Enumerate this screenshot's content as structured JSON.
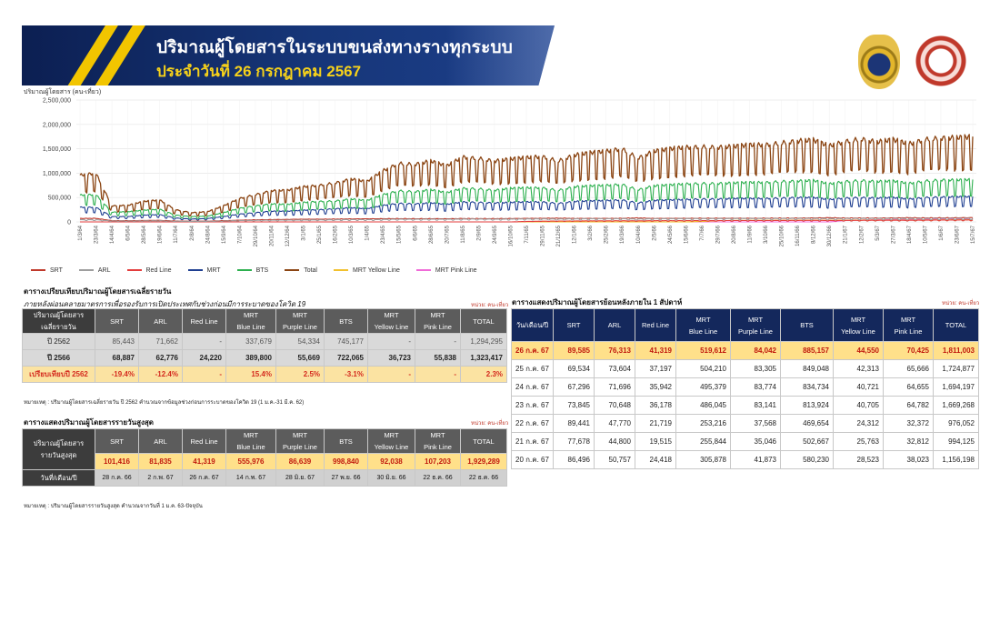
{
  "header": {
    "title": "ปริมาณผู้โดยสารในระบบขนส่งทางรางทุกระบบ",
    "subtitle": "ประจำวันที่ 26 กรกฎาคม 2567"
  },
  "colors": {
    "SRT": "#c0392b",
    "ARL": "#9e9e9e",
    "Red Line": "#e33d3d",
    "MRT": "#1f3f91",
    "BTS": "#2db04f",
    "Total": "#8b4513",
    "MRT Yellow Line": "#f2c12e",
    "MRT Pink Line": "#f06bd8",
    "highlight_row": "#ffe08a",
    "compare_row": "#fbe3a2"
  },
  "chart_data": {
    "type": "line",
    "ylabel": "ปริมาณผู้โดยสาร (คน-เที่ยว)",
    "ylim": [
      0,
      2500000
    ],
    "yticks": [
      "0",
      "500,000",
      "1,000,000",
      "1,500,000",
      "2,000,000",
      "2,500,000"
    ],
    "grid": true,
    "legend_position": "bottom",
    "x_tick_labels": [
      "1/3/64",
      "23/3/64",
      "14/4/64",
      "6/5/64",
      "28/5/64",
      "19/6/64",
      "11/7/64",
      "2/8/64",
      "24/8/64",
      "15/9/64",
      "7/10/64",
      "29/10/64",
      "20/11/64",
      "12/12/64",
      "3/1/65",
      "25/1/65",
      "16/2/65",
      "10/3/65",
      "1/4/65",
      "23/4/65",
      "15/5/65",
      "6/6/65",
      "28/6/65",
      "20/7/65",
      "11/8/65",
      "2/9/65",
      "24/9/65",
      "16/10/65",
      "7/11/65",
      "29/11/65",
      "21/12/65",
      "12/1/66",
      "3/2/66",
      "25/2/66",
      "19/3/66",
      "10/4/66",
      "2/5/66",
      "24/5/66",
      "15/6/66",
      "7/7/66",
      "29/7/66",
      "20/8/66",
      "11/9/66",
      "3/10/66",
      "25/10/66",
      "16/11/66",
      "8/12/66",
      "30/12/66",
      "21/1/67",
      "12/2/67",
      "5/3/67",
      "27/3/67",
      "18/4/67",
      "10/5/67",
      "1/6/67",
      "23/6/67",
      "15/7/67"
    ],
    "series_keyframes": [
      {
        "name": "Total",
        "values": [
          960000,
          1000000,
          330000,
          340000,
          420000,
          450000,
          250000,
          190000,
          210000,
          330000,
          480000,
          560000,
          640000,
          650000,
          720000,
          750000,
          800000,
          880000,
          830000,
          1050000,
          1200000,
          1180000,
          1250000,
          1150000,
          1330000,
          1300000,
          1250000,
          1290000,
          1320000,
          1340000,
          1250000,
          1370000,
          1420000,
          1450000,
          1500000,
          1310000,
          1450000,
          1500000,
          1530000,
          1540000,
          1530000,
          1550000,
          1580000,
          1580000,
          1620000,
          1660000,
          1680000,
          1560000,
          1650000,
          1700000,
          1640000,
          1690000,
          1600000,
          1690000,
          1720000,
          1730000,
          1750000
        ]
      },
      {
        "name": "BTS",
        "values": [
          550000,
          560000,
          200000,
          210000,
          240000,
          260000,
          140000,
          110000,
          120000,
          190000,
          280000,
          330000,
          370000,
          360000,
          400000,
          420000,
          430000,
          470000,
          440000,
          560000,
          640000,
          620000,
          660000,
          600000,
          690000,
          680000,
          650000,
          690000,
          700000,
          700000,
          650000,
          720000,
          740000,
          750000,
          770000,
          660000,
          740000,
          760000,
          780000,
          790000,
          790000,
          800000,
          810000,
          810000,
          830000,
          840000,
          850000,
          780000,
          830000,
          850000,
          830000,
          840000,
          790000,
          840000,
          860000,
          860000,
          870000
        ]
      },
      {
        "name": "MRT",
        "values": [
          300000,
          300000,
          110000,
          110000,
          140000,
          150000,
          80000,
          60000,
          70000,
          110000,
          160000,
          190000,
          220000,
          220000,
          240000,
          250000,
          270000,
          290000,
          270000,
          340000,
          380000,
          370000,
          390000,
          360000,
          410000,
          400000,
          390000,
          400000,
          410000,
          410000,
          380000,
          420000,
          430000,
          440000,
          450000,
          390000,
          440000,
          450000,
          460000,
          470000,
          470000,
          480000,
          480000,
          480000,
          490000,
          500000,
          500000,
          460000,
          490000,
          500000,
          490000,
          500000,
          470000,
          500000,
          510000,
          515000,
          520000
        ]
      },
      {
        "name": "ARL",
        "values": [
          45000,
          45000,
          20000,
          20000,
          22000,
          24000,
          15000,
          12000,
          14000,
          20000,
          28000,
          32000,
          36000,
          38000,
          40000,
          42000,
          44000,
          48000,
          45000,
          52000,
          56000,
          55000,
          58000,
          55000,
          60000,
          60000,
          58000,
          60000,
          62000,
          63000,
          60000,
          64000,
          65000,
          66000,
          67000,
          60000,
          66000,
          67000,
          68000,
          69000,
          69000,
          70000,
          70000,
          70000,
          71000,
          72000,
          72000,
          68000,
          71000,
          72000,
          71000,
          72000,
          70000,
          73000,
          74000,
          75000,
          76000
        ]
      },
      {
        "name": "SRT",
        "values": [
          70000,
          72000,
          25000,
          25000,
          30000,
          32000,
          20000,
          15000,
          18000,
          25000,
          35000,
          42000,
          48000,
          50000,
          55000,
          55000,
          57000,
          60000,
          62000,
          65000,
          66000,
          64000,
          66000,
          64000,
          68000,
          67000,
          66000,
          68000,
          70000,
          72000,
          75000,
          70000,
          70000,
          70000,
          72000,
          80000,
          70000,
          72000,
          72000,
          73000,
          74000,
          74000,
          75000,
          75000,
          76000,
          78000,
          80000,
          85000,
          78000,
          78000,
          78000,
          80000,
          85000,
          80000,
          82000,
          84000,
          86000
        ]
      },
      {
        "name": "Red Line",
        "values": [
          0,
          0,
          0,
          0,
          0,
          0,
          0,
          0,
          0,
          0,
          0,
          0,
          0,
          0,
          0,
          0,
          0,
          0,
          0,
          0,
          0,
          0,
          0,
          0,
          0,
          0,
          0,
          0,
          10000,
          15000,
          18000,
          20000,
          22000,
          22000,
          24000,
          22000,
          25000,
          25000,
          26000,
          27000,
          28000,
          28000,
          29000,
          29000,
          30000,
          31000,
          32000,
          30000,
          32000,
          33000,
          33000,
          34000,
          33000,
          36000,
          38000,
          40000,
          41000
        ]
      },
      {
        "name": "MRT Yellow Line",
        "values": [
          0,
          0,
          0,
          0,
          0,
          0,
          0,
          0,
          0,
          0,
          0,
          0,
          0,
          0,
          0,
          0,
          0,
          0,
          0,
          0,
          0,
          0,
          0,
          0,
          0,
          0,
          0,
          0,
          0,
          0,
          0,
          0,
          0,
          0,
          0,
          0,
          0,
          0,
          0,
          10000,
          25000,
          30000,
          32000,
          33000,
          34000,
          35000,
          36000,
          34000,
          37000,
          38000,
          38000,
          39000,
          38000,
          40000,
          42000,
          43000,
          44000
        ]
      },
      {
        "name": "MRT Pink Line",
        "values": [
          0,
          0,
          0,
          0,
          0,
          0,
          0,
          0,
          0,
          0,
          0,
          0,
          0,
          0,
          0,
          0,
          0,
          0,
          0,
          0,
          0,
          0,
          0,
          0,
          0,
          0,
          0,
          0,
          0,
          0,
          0,
          0,
          0,
          0,
          0,
          0,
          0,
          0,
          0,
          0,
          0,
          0,
          0,
          0,
          0,
          0,
          0,
          0,
          30000,
          40000,
          45000,
          50000,
          48000,
          55000,
          60000,
          65000,
          70000
        ]
      }
    ]
  },
  "legend": [
    "SRT",
    "ARL",
    "Red Line",
    "MRT",
    "BTS",
    "Total",
    "MRT Yellow Line",
    "MRT Pink Line"
  ],
  "section_compare": {
    "heading": "ตารางเปรียบเทียบปริมาณผู้โดยสารเฉลี่ยรายวัน",
    "title": "ภายหลังผ่อนคลายมาตรการเพื่อรองรับการเปิดประเทศกับช่วงก่อนมีการระบาดของโควิด 19",
    "unit": "หน่วย: คน-เที่ยว",
    "corner_header": [
      "ปริมาณผู้โดยสาร",
      "เฉลี่ยรายวัน"
    ],
    "columns": [
      [
        "SRT"
      ],
      [
        "ARL"
      ],
      [
        "Red Line"
      ],
      [
        "MRT",
        "Blue Line"
      ],
      [
        "MRT",
        "Purple Line"
      ],
      [
        "BTS"
      ],
      [
        "MRT",
        "Yellow Line"
      ],
      [
        "MRT",
        "Pink Line"
      ],
      [
        "TOTAL"
      ]
    ],
    "rows": [
      {
        "label": "ปี 2562",
        "cells": [
          "85,443",
          "71,662",
          "-",
          "337,679",
          "54,334",
          "745,177",
          "-",
          "-",
          "1,294,295"
        ]
      },
      {
        "label": "ปี 2566",
        "cells": [
          "68,887",
          "62,776",
          "24,220",
          "389,800",
          "55,669",
          "722,065",
          "36,723",
          "55,838",
          "1,323,417"
        ]
      },
      {
        "label": "เปรียบเทียบปี 2562",
        "cells": [
          "-19.4%",
          "-12.4%",
          "-",
          "15.4%",
          "2.5%",
          "-3.1%",
          "-",
          "-",
          "2.3%"
        ]
      }
    ],
    "note": "หมายเหตุ : ปริมาณผู้โดยสารเฉลี่ยรายวัน ปี 2562 คำนวณจากข้อมูลช่วงก่อนการระบาดของโควิด 19 (1 ม.ค.-31 มี.ค. 62)"
  },
  "section_max": {
    "title": "ตารางแสดงปริมาณผู้โดยสารรายวันสูงสุด",
    "unit": "หน่วย: คน-เที่ยว",
    "corner_header": [
      "ปริมาณผู้โดยสาร",
      "รายวันสูงสุด"
    ],
    "columns": [
      [
        "SRT"
      ],
      [
        "ARL"
      ],
      [
        "Red Line"
      ],
      [
        "MRT",
        "Blue Line"
      ],
      [
        "MRT",
        "Purple Line"
      ],
      [
        "BTS"
      ],
      [
        "MRT",
        "Yellow Line"
      ],
      [
        "MRT",
        "Pink Line"
      ],
      [
        "TOTAL"
      ]
    ],
    "values": [
      "101,416",
      "81,835",
      "41,319",
      "555,976",
      "86,639",
      "998,840",
      "92,038",
      "107,203",
      "1,929,289"
    ],
    "date_label": "วันที่/เดือน/ปี",
    "dates": [
      "28 ก.ค. 66",
      "2 ก.พ. 67",
      "26 ก.ค. 67",
      "14 ก.พ. 67",
      "28 มิ.ย. 67",
      "27 พ.ย. 66",
      "30 มิ.ย. 66",
      "22 ธ.ค. 66",
      "22 ธ.ค. 66"
    ],
    "note": "หมายเหตุ : ปริมาณผู้โดยสารรายวันสูงสุด คำนวณจากวันที่ 1 ม.ค. 63-ปัจจุบัน"
  },
  "section_week": {
    "title": "ตารางแสดงปริมาณผู้โดยสารย้อนหลังภายใน 1 สัปดาห์",
    "unit": "หน่วย: คน-เที่ยว",
    "corner_header": "วัน/เดือน/ปี",
    "columns": [
      [
        "SRT"
      ],
      [
        "ARL"
      ],
      [
        "Red Line"
      ],
      [
        "MRT",
        "Blue Line"
      ],
      [
        "MRT",
        "Purple Line"
      ],
      [
        "BTS"
      ],
      [
        "MRT",
        "Yellow Line"
      ],
      [
        "MRT",
        "Pink Line"
      ],
      [
        "TOTAL"
      ]
    ],
    "rows": [
      {
        "date": "26 ก.ค. 67",
        "cells": [
          "89,585",
          "76,313",
          "41,319",
          "519,612",
          "84,042",
          "885,157",
          "44,550",
          "70,425",
          "1,811,003"
        ]
      },
      {
        "date": "25 ก.ค. 67",
        "cells": [
          "69,534",
          "73,604",
          "37,197",
          "504,210",
          "83,305",
          "849,048",
          "42,313",
          "65,666",
          "1,724,877"
        ]
      },
      {
        "date": "24 ก.ค. 67",
        "cells": [
          "67,296",
          "71,696",
          "35,942",
          "495,379",
          "83,774",
          "834,734",
          "40,721",
          "64,655",
          "1,694,197"
        ]
      },
      {
        "date": "23 ก.ค. 67",
        "cells": [
          "73,845",
          "70,648",
          "36,178",
          "486,045",
          "83,141",
          "813,924",
          "40,705",
          "64,782",
          "1,669,268"
        ]
      },
      {
        "date": "22 ก.ค. 67",
        "cells": [
          "89,441",
          "47,770",
          "21,719",
          "253,216",
          "37,568",
          "469,654",
          "24,312",
          "32,372",
          "976,052"
        ]
      },
      {
        "date": "21 ก.ค. 67",
        "cells": [
          "77,678",
          "44,800",
          "19,515",
          "255,844",
          "35,046",
          "502,667",
          "25,763",
          "32,812",
          "994,125"
        ]
      },
      {
        "date": "20 ก.ค. 67",
        "cells": [
          "86,496",
          "50,757",
          "24,418",
          "305,878",
          "41,873",
          "580,230",
          "28,523",
          "38,023",
          "1,156,198"
        ]
      }
    ]
  }
}
